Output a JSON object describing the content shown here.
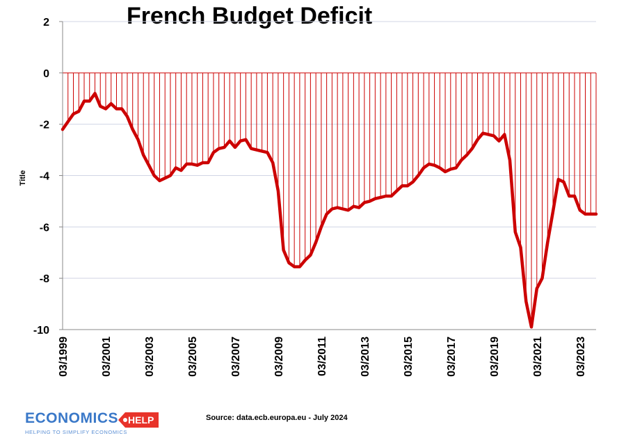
{
  "chart_data": {
    "type": "line",
    "title": "French Budget Deficit",
    "xlabel": "",
    "ylabel": "Title",
    "ylim": [
      -10,
      2
    ],
    "yticks": [
      "2",
      "0",
      "-2",
      "-4",
      "-6",
      "-8",
      "-10"
    ],
    "grid": true,
    "legend": "none",
    "xticks": [
      "03/1999",
      "03/2001",
      "03/2003",
      "03/2005",
      "03/2007",
      "03/2009",
      "03/2011",
      "03/2013",
      "03/2015",
      "03/2017",
      "03/2019",
      "03/2021",
      "03/2023"
    ],
    "x": [
      1999.25,
      1999.5,
      1999.75,
      2000.0,
      2000.25,
      2000.5,
      2000.75,
      2001.0,
      2001.25,
      2001.5,
      2001.75,
      2002.0,
      2002.25,
      2002.5,
      2002.75,
      2003.0,
      2003.25,
      2003.5,
      2003.75,
      2004.0,
      2004.25,
      2004.5,
      2004.75,
      2005.0,
      2005.25,
      2005.5,
      2005.75,
      2006.0,
      2006.25,
      2006.5,
      2006.75,
      2007.0,
      2007.25,
      2007.5,
      2007.75,
      2008.0,
      2008.25,
      2008.5,
      2008.75,
      2009.0,
      2009.25,
      2009.5,
      2009.75,
      2010.0,
      2010.25,
      2010.5,
      2010.75,
      2011.0,
      2011.25,
      2011.5,
      2011.75,
      2012.0,
      2012.25,
      2012.5,
      2012.75,
      2013.0,
      2013.25,
      2013.5,
      2013.75,
      2014.0,
      2014.25,
      2014.5,
      2014.75,
      2015.0,
      2015.25,
      2015.5,
      2015.75,
      2016.0,
      2016.25,
      2016.5,
      2016.75,
      2017.0,
      2017.25,
      2017.5,
      2017.75,
      2018.0,
      2018.25,
      2018.5,
      2018.75,
      2019.0,
      2019.25,
      2019.5,
      2019.75,
      2020.0,
      2020.25,
      2020.5,
      2020.75,
      2021.0,
      2021.25,
      2021.5,
      2021.75,
      2022.0,
      2022.25,
      2022.5,
      2022.75,
      2023.0,
      2023.25,
      2023.5,
      2023.75,
      2024.0
    ],
    "series": [
      {
        "color": "#cc0000",
        "values": [
          -2.2,
          -1.9,
          -1.6,
          -1.5,
          -1.1,
          -1.1,
          -0.8,
          -1.3,
          -1.4,
          -1.2,
          -1.4,
          -1.4,
          -1.7,
          -2.2,
          -2.6,
          -3.2,
          -3.6,
          -4.0,
          -4.2,
          -4.1,
          -4.0,
          -3.7,
          -3.8,
          -3.55,
          -3.55,
          -3.6,
          -3.5,
          -3.5,
          -3.1,
          -2.95,
          -2.9,
          -2.65,
          -2.9,
          -2.65,
          -2.6,
          -2.95,
          -3.0,
          -3.05,
          -3.1,
          -3.5,
          -4.6,
          -6.9,
          -7.4,
          -7.55,
          -7.55,
          -7.3,
          -7.1,
          -6.6,
          -6.0,
          -5.5,
          -5.3,
          -5.25,
          -5.3,
          -5.35,
          -5.2,
          -5.25,
          -5.05,
          -5.0,
          -4.9,
          -4.85,
          -4.8,
          -4.8,
          -4.6,
          -4.4,
          -4.4,
          -4.25,
          -4.0,
          -3.7,
          -3.55,
          -3.6,
          -3.7,
          -3.85,
          -3.75,
          -3.7,
          -3.4,
          -3.2,
          -2.95,
          -2.6,
          -2.35,
          -2.4,
          -2.45,
          -2.65,
          -2.4,
          -3.4,
          -6.2,
          -6.8,
          -8.9,
          -9.9,
          -8.4,
          -8.0,
          -6.6,
          -5.4,
          -4.15,
          -4.25,
          -4.8,
          -4.8,
          -5.35,
          -5.5,
          -5.5,
          -5.5
        ]
      }
    ]
  },
  "source_note": "Source: data.ecb.europa.eu - July 2024",
  "logo": {
    "word": "ECONOMICS",
    "help": "HELP",
    "tagline": "HELPING TO SIMPLIFY ECONOMICS",
    "word_color": "#3a78c8",
    "help_color": "#e8332a"
  }
}
